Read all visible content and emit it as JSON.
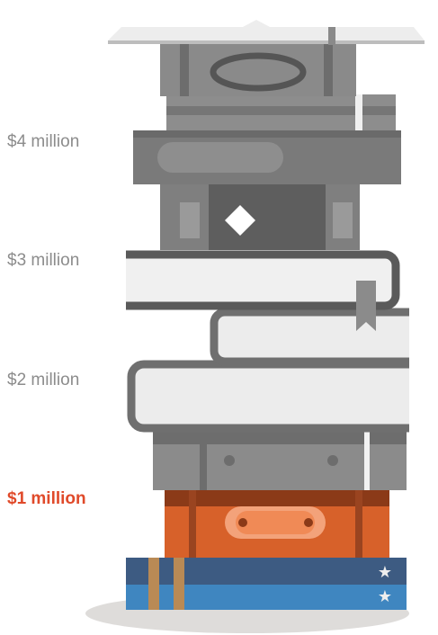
{
  "labels": [
    "$4 million",
    "$3 million",
    "$2 million",
    "$1 million"
  ]
}
